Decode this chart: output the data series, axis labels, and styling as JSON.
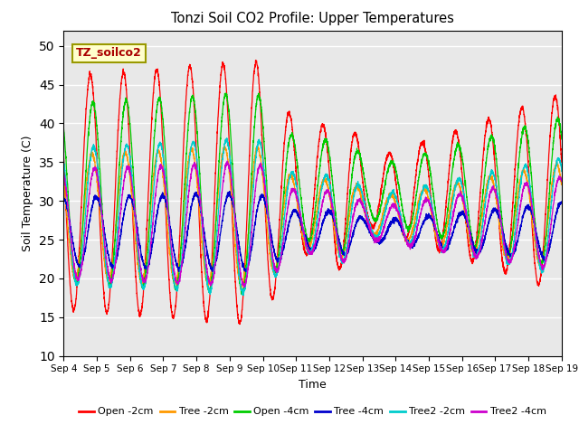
{
  "title": "Tonzi Soil CO2 Profile: Upper Temperatures",
  "xlabel": "Time",
  "ylabel": "Soil Temperature (C)",
  "ylim": [
    10,
    52
  ],
  "yticks": [
    10,
    15,
    20,
    25,
    30,
    35,
    40,
    45,
    50
  ],
  "x_start": 4,
  "x_end": 19,
  "background_color": "#e8e8e8",
  "annotation_text": "TZ_soilco2",
  "annotation_bg": "#ffffcc",
  "annotation_border": "#cccc00",
  "series": [
    {
      "label": "Open -2cm",
      "color": "#ff0000",
      "mid": 31,
      "amp": 17,
      "phase": 0.0,
      "lag": 0.0
    },
    {
      "label": "Tree -2cm",
      "color": "#ff9900",
      "mid": 28,
      "amp": 9,
      "phase": 0.0,
      "lag": 0.05
    },
    {
      "label": "Open -4cm",
      "color": "#00cc00",
      "mid": 31,
      "amp": 13,
      "phase": 0.0,
      "lag": 0.08
    },
    {
      "label": "Tree -4cm",
      "color": "#0000cc",
      "mid": 26,
      "amp": 5,
      "phase": 0.0,
      "lag": 0.18
    },
    {
      "label": "Tree2 -2cm",
      "color": "#00cccc",
      "mid": 28,
      "amp": 10,
      "phase": 0.0,
      "lag": 0.1
    },
    {
      "label": "Tree2 -4cm",
      "color": "#cc00cc",
      "mid": 27,
      "amp": 8,
      "phase": 0.0,
      "lag": 0.13
    }
  ],
  "xtick_labels": [
    "Sep 4",
    "Sep 5",
    "Sep 6",
    "Sep 7",
    "Sep 8",
    "Sep 9",
    "Sep 10",
    "Sep 11",
    "Sep 12",
    "Sep 13",
    "Sep 14",
    "Sep 15",
    "Sep 16",
    "Sep 17",
    "Sep 18",
    "Sep 19"
  ],
  "xtick_positions": [
    4,
    5,
    6,
    7,
    8,
    9,
    10,
    11,
    12,
    13,
    14,
    15,
    16,
    17,
    18,
    19
  ]
}
